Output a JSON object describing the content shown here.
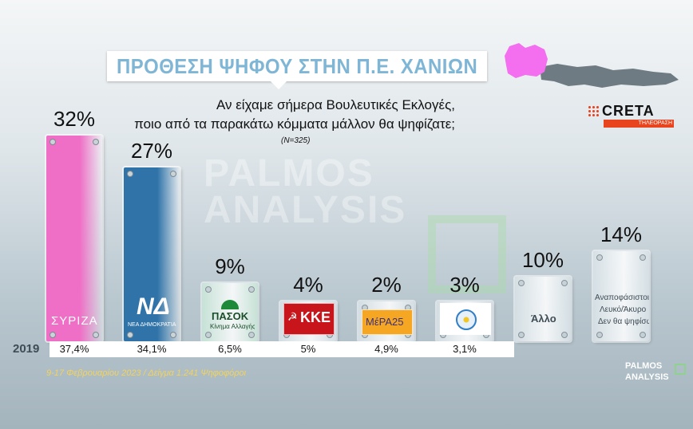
{
  "title": "ΠΡΟΘΕΣΗ ΨΗΦΟΥ ΣΤΗΝ Π.Ε. ΧΑΝΙΩΝ",
  "question_line1": "Αν είχαμε σήμερα Βουλευτικές Εκλογές,",
  "question_line2": "ποιο από τα παρακάτω κόμματα μάλλον θα ψηφίζατε;",
  "sample_size": "(N=325)",
  "watermark_line1": "PALMOS",
  "watermark_line2": "ANALYSIS",
  "channel": {
    "name": "CRETA",
    "sub": "ΤΗΛΕΟΡΑΣΗ",
    "accent": "#e8451f"
  },
  "previous_year_label": "2019",
  "footer": "9-17 Φεβρουαρίου 2023 / Δείγμα 1.241 Ψηφοφόροι",
  "brand_small_line1": "PALMOS",
  "brand_small_line2": "ANALYSIS",
  "map_highlight_color": "#f46ef0",
  "chart_data": {
    "type": "bar",
    "unit": "%",
    "ylim": [
      0,
      32
    ],
    "categories": [
      "ΣΥΡΙΖΑ",
      "ΝΔ",
      "ΠΑΣΟΚ",
      "ΚΚΕ",
      "ΜέΡΑ25",
      "Ελληνική Λύση",
      "Άλλο",
      "Αναποφάσιστοι / Λευκό/Άκυρο / Δεν θα ψηφίσω"
    ],
    "values": [
      32,
      27,
      9,
      4,
      2,
      3,
      10,
      14
    ],
    "value_labels": [
      "32%",
      "27%",
      "9%",
      "4%",
      "2%",
      "3%",
      "10%",
      "14%"
    ],
    "colors": [
      "#ef6fc6",
      "#2f73a8",
      "#c9e7d8",
      "#d9e3e8",
      "#d9e3e8",
      "#d9e3e8",
      "#d9e3e8",
      "#d9e3e8"
    ],
    "results_2019": [
      "37,4%",
      "34,1%",
      "6,5%",
      "5%",
      "4,9%",
      "3,1%"
    ],
    "party_logos": {
      "syriza": "ΣΥΡΙΖΑ",
      "nd_top": "ΝΔ",
      "nd_bottom": "ΝΕΑ ΔΗΜΟΚΡΑΤΙΑ",
      "pasok": "ΠΑΣΟΚ",
      "pasok_sub": "Κίνημα Αλλαγής",
      "kke": "ΚΚΕ",
      "mera25": "ΜέΡΑ25",
      "other": "Άλλο",
      "undecided_1": "Αναποφάσιστοι",
      "undecided_2": "Λευκό/Άκυρο",
      "undecided_3": "Δεν θα ψηφίσω"
    }
  }
}
